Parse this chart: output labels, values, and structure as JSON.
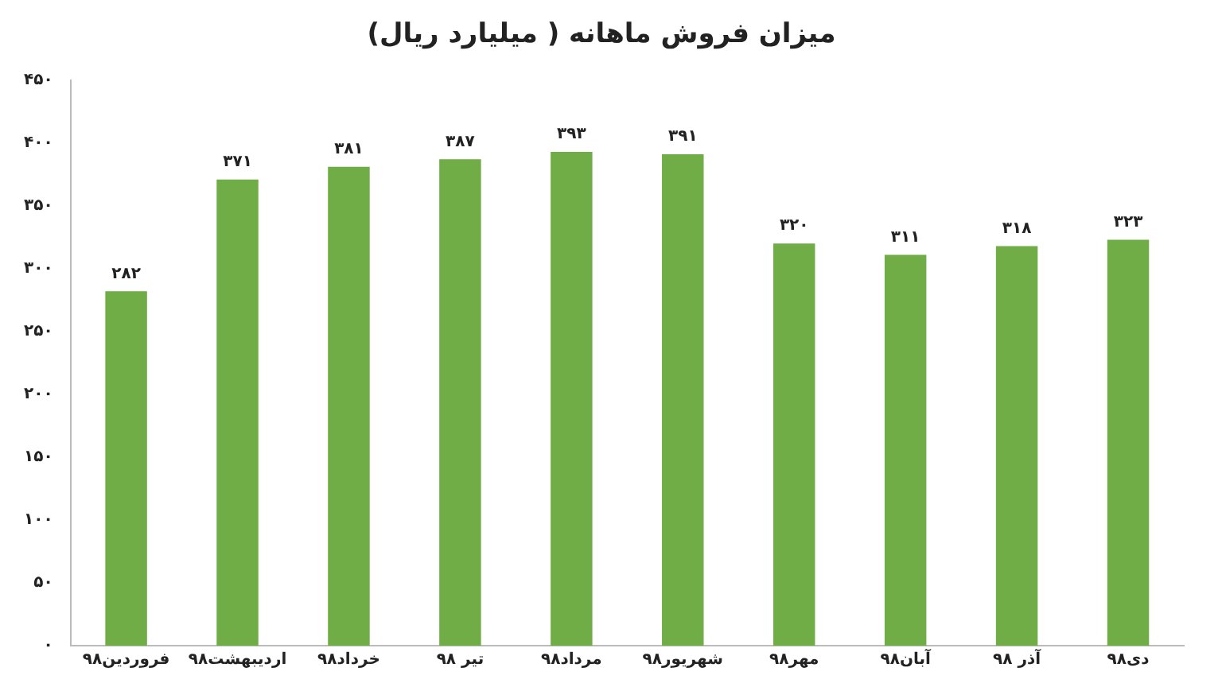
{
  "chart_data": {
    "type": "bar",
    "title": "میزان فروش ماهانه ( میلیارد ریال)",
    "categories": [
      "فروردین۹۸",
      "اردیبهشت۹۸",
      "خرداد۹۸",
      "تیر ۹۸",
      "مرداد۹۸",
      "شهریور۹۸",
      "مهر۹۸",
      "آبان۹۸",
      "آذر ۹۸",
      "دی۹۸"
    ],
    "values": [
      282,
      371,
      381,
      387,
      393,
      391,
      320,
      311,
      318,
      323
    ],
    "value_labels": [
      "۲۸۲",
      "۳۷۱",
      "۳۸۱",
      "۳۸۷",
      "۳۹۳",
      "۳۹۱",
      "۳۲۰",
      "۳۱۱",
      "۳۱۸",
      "۳۲۳"
    ],
    "color": "#70ad47",
    "ylim": [
      0,
      450
    ],
    "yticks": [
      {
        "value": 0,
        "label": "۰"
      },
      {
        "value": 50,
        "label": "۵۰"
      },
      {
        "value": 100,
        "label": "۱۰۰"
      },
      {
        "value": 150,
        "label": "۱۵۰"
      },
      {
        "value": 200,
        "label": "۲۰۰"
      },
      {
        "value": 250,
        "label": "۲۵۰"
      },
      {
        "value": 300,
        "label": "۳۰۰"
      },
      {
        "value": 350,
        "label": "۳۵۰"
      },
      {
        "value": 400,
        "label": "۴۰۰"
      },
      {
        "value": 450,
        "label": "۴۵۰"
      }
    ],
    "grid": false,
    "legend": false
  }
}
